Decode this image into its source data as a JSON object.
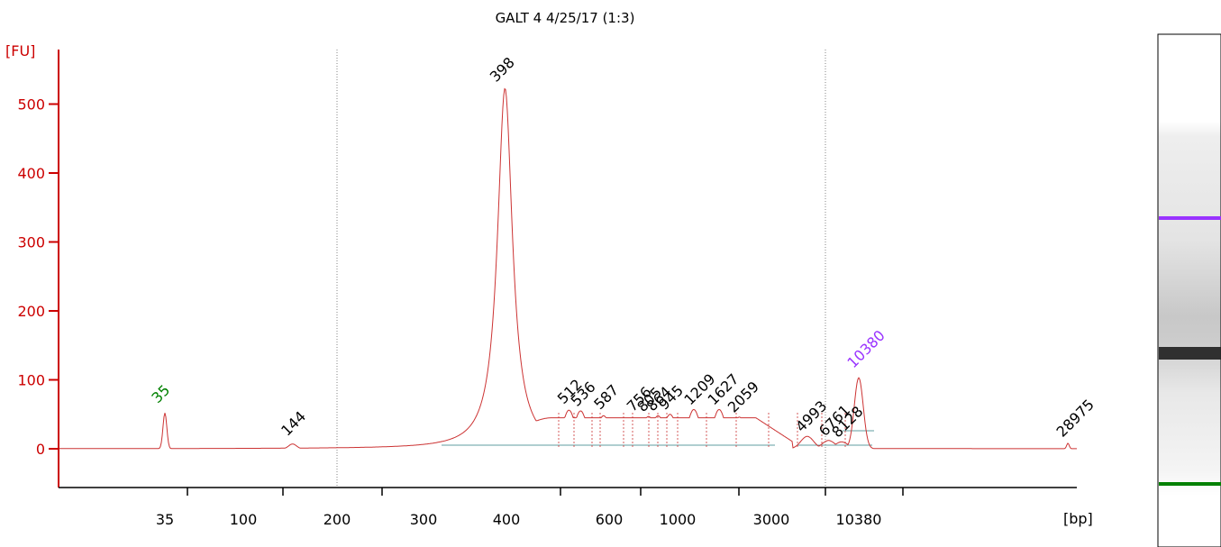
{
  "chart_data": {
    "type": "line",
    "title": "GALT 4 4/25/17 (1:3)",
    "ylabel": "[FU]",
    "xlabel": "[bp]",
    "ylim": [
      -55,
      580
    ],
    "y_ticks": [
      0,
      100,
      200,
      300,
      400,
      500
    ],
    "x_ticks": [
      "35",
      "100",
      "200",
      "300",
      "400",
      "600",
      "1000",
      "3000",
      "10380"
    ],
    "marker_ladder": {
      "lower_marker": "35",
      "upper_marker": "10380"
    },
    "colors": {
      "trace": "#cc3333",
      "axis": "#cc0000",
      "baseline": "#5f9ea0",
      "lower_marker": "#008000",
      "upper_marker": "#9933ff"
    },
    "peaks": [
      {
        "label": "35",
        "size_bp": 35,
        "height": 52,
        "color": "lower"
      },
      {
        "label": "144",
        "size_bp": 144,
        "height": 7,
        "color": "black"
      },
      {
        "label": "398",
        "size_bp": 398,
        "height": 523,
        "color": "black"
      },
      {
        "label": "512",
        "size_bp": 512,
        "height": 56,
        "color": "black"
      },
      {
        "label": "536",
        "size_bp": 536,
        "height": 55,
        "color": "black"
      },
      {
        "label": "587",
        "size_bp": 587,
        "height": 48,
        "color": "black"
      },
      {
        "label": "756",
        "size_bp": 756,
        "height": 45,
        "color": "black"
      },
      {
        "label": "805",
        "size_bp": 805,
        "height": 47,
        "color": "black"
      },
      {
        "label": "864",
        "size_bp": 864,
        "height": 48,
        "color": "black"
      },
      {
        "label": "945",
        "size_bp": 945,
        "height": 50,
        "color": "black"
      },
      {
        "label": "1209",
        "size_bp": 1209,
        "height": 57,
        "color": "black"
      },
      {
        "label": "1627",
        "size_bp": 1627,
        "height": 57,
        "color": "black"
      },
      {
        "label": "2059",
        "size_bp": 2059,
        "height": 46,
        "color": "black"
      },
      {
        "label": "4993",
        "size_bp": 4993,
        "height": 18,
        "color": "black"
      },
      {
        "label": "6761",
        "size_bp": 6761,
        "height": 12,
        "color": "black"
      },
      {
        "label": "8128",
        "size_bp": 8128,
        "height": 10,
        "color": "black"
      },
      {
        "label": "10380",
        "size_bp": 10380,
        "height": 103,
        "color": "upper"
      },
      {
        "label": "28975",
        "size_bp": 28975,
        "height": 8,
        "color": "black"
      }
    ]
  }
}
